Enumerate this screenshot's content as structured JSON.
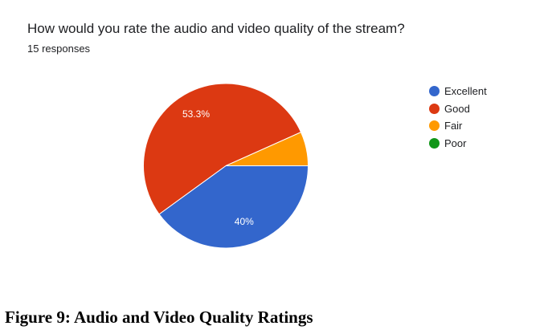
{
  "chart_data": {
    "type": "pie",
    "title": "How would you rate the audio and video quality of the stream?",
    "subtitle": "15 responses",
    "categories": [
      "Excellent",
      "Good",
      "Fair",
      "Poor"
    ],
    "values": [
      40,
      53.3,
      6.7,
      0
    ],
    "colors": [
      "#3366cc",
      "#dc3912",
      "#ff9900",
      "#109618"
    ],
    "data_labels": [
      "40%",
      "53.3%",
      "",
      ""
    ],
    "legend_position": "right"
  },
  "caption": "Figure 9: Audio and Video Quality Ratings"
}
